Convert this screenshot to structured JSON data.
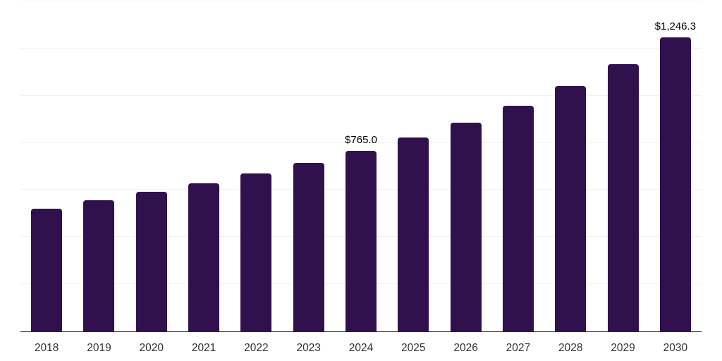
{
  "chart_data": {
    "type": "bar",
    "title": "",
    "xlabel": "",
    "ylabel": "",
    "categories": [
      "2018",
      "2019",
      "2020",
      "2021",
      "2022",
      "2023",
      "2024",
      "2025",
      "2026",
      "2027",
      "2028",
      "2029",
      "2030"
    ],
    "values": [
      522,
      556,
      591,
      627,
      669,
      714,
      765.0,
      822,
      886,
      958,
      1041,
      1133,
      1246.3
    ],
    "data_labels": [
      "",
      "",
      "",
      "",
      "",
      "",
      "$765.0",
      "",
      "",
      "",
      "",
      "",
      "$1,246.3"
    ],
    "ylim": [
      0,
      1400
    ],
    "gridline_values": [
      200,
      400,
      600,
      800,
      1000,
      1200,
      1400
    ],
    "grid": true,
    "legend": "none"
  },
  "colors": {
    "bar": "#31114d",
    "gridline": "#f2f2f2",
    "axis_line": "#262626",
    "tick_label": "#333333",
    "data_label": "#000000",
    "background": "#ffffff"
  }
}
